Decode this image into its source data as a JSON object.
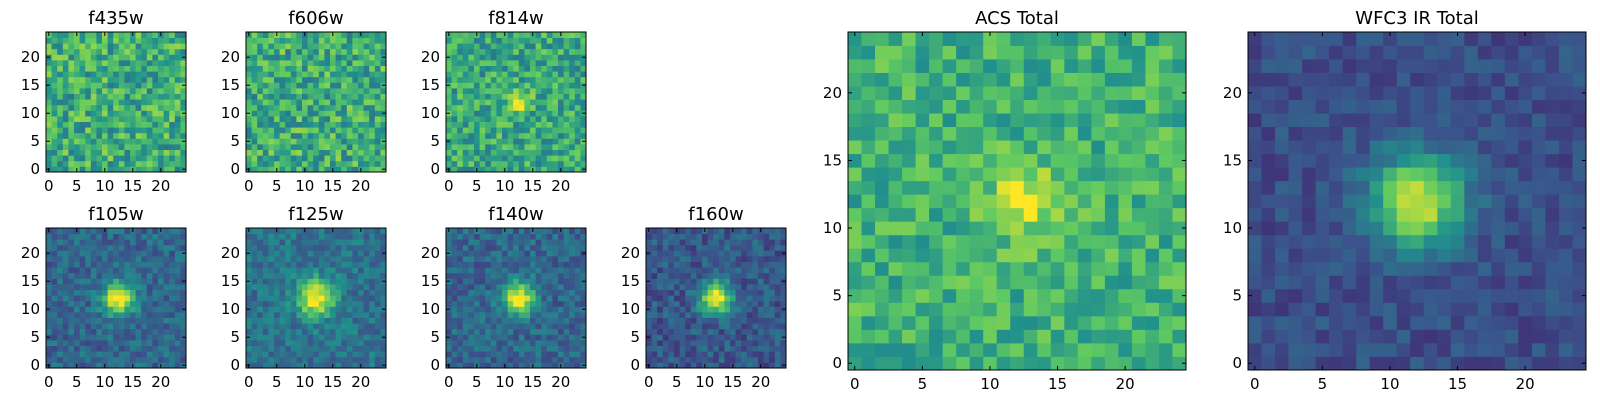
{
  "figure": {
    "colormap": [
      "#440154",
      "#3b528b",
      "#21918c",
      "#5ec962",
      "#fde725"
    ],
    "frame_color": "#000000"
  },
  "chart_data": [
    {
      "type": "heatmap",
      "title": "f435w",
      "grid_size": 25,
      "xlim": [
        0,
        24
      ],
      "ylim": [
        0,
        24
      ],
      "xticks": [
        "0",
        "5",
        "10",
        "15",
        "20"
      ],
      "yticks": [
        "0",
        "5",
        "10",
        "15",
        "20"
      ],
      "source": {
        "center": [
          12,
          12
        ],
        "peak": 0.0,
        "sigma": 2.0,
        "background": 0.62,
        "noise": 0.22,
        "seed": 11
      }
    },
    {
      "type": "heatmap",
      "title": "f606w",
      "grid_size": 25,
      "xlim": [
        0,
        24
      ],
      "ylim": [
        0,
        24
      ],
      "xticks": [
        "0",
        "5",
        "10",
        "15",
        "20"
      ],
      "yticks": [
        "0",
        "5",
        "10",
        "15",
        "20"
      ],
      "source": {
        "center": [
          12,
          12
        ],
        "peak": 0.0,
        "sigma": 2.0,
        "background": 0.62,
        "noise": 0.22,
        "seed": 23
      }
    },
    {
      "type": "heatmap",
      "title": "f814w",
      "grid_size": 25,
      "xlim": [
        0,
        24
      ],
      "ylim": [
        0,
        24
      ],
      "xticks": [
        "0",
        "5",
        "10",
        "15",
        "20"
      ],
      "yticks": [
        "0",
        "5",
        "10",
        "15",
        "20"
      ],
      "source": {
        "center": [
          12.5,
          12
        ],
        "peak": 0.45,
        "sigma": 1.3,
        "background": 0.6,
        "noise": 0.2,
        "seed": 37
      }
    },
    {
      "type": "heatmap",
      "title": "f105w",
      "grid_size": 25,
      "xlim": [
        0,
        24
      ],
      "ylim": [
        0,
        24
      ],
      "xticks": [
        "0",
        "5",
        "10",
        "15",
        "20"
      ],
      "yticks": [
        "0",
        "5",
        "10",
        "15",
        "20"
      ],
      "source": {
        "center": [
          12.5,
          12
        ],
        "peak": 0.7,
        "sigma": 2.0,
        "background": 0.33,
        "noise": 0.12,
        "seed": 41
      }
    },
    {
      "type": "heatmap",
      "title": "f125w",
      "grid_size": 25,
      "xlim": [
        0,
        24
      ],
      "ylim": [
        0,
        24
      ],
      "xticks": [
        "0",
        "5",
        "10",
        "15",
        "20"
      ],
      "yticks": [
        "0",
        "5",
        "10",
        "15",
        "20"
      ],
      "source": {
        "center": [
          12,
          12
        ],
        "peak": 0.65,
        "sigma": 2.3,
        "background": 0.38,
        "noise": 0.12,
        "seed": 53
      }
    },
    {
      "type": "heatmap",
      "title": "f140w",
      "grid_size": 25,
      "xlim": [
        0,
        24
      ],
      "ylim": [
        0,
        24
      ],
      "xticks": [
        "0",
        "5",
        "10",
        "15",
        "20"
      ],
      "yticks": [
        "0",
        "5",
        "10",
        "15",
        "20"
      ],
      "source": {
        "center": [
          12.5,
          12
        ],
        "peak": 0.68,
        "sigma": 2.0,
        "background": 0.33,
        "noise": 0.12,
        "seed": 67
      }
    },
    {
      "type": "heatmap",
      "title": "f160w",
      "grid_size": 25,
      "xlim": [
        0,
        24
      ],
      "ylim": [
        0,
        24
      ],
      "xticks": [
        "0",
        "5",
        "10",
        "15",
        "20"
      ],
      "yticks": [
        "0",
        "5",
        "10",
        "15",
        "20"
      ],
      "source": {
        "center": [
          12,
          12
        ],
        "peak": 0.72,
        "sigma": 2.0,
        "background": 0.28,
        "noise": 0.12,
        "seed": 79
      }
    },
    {
      "type": "heatmap",
      "title": "ACS Total",
      "grid_size": 25,
      "xlim": [
        0,
        24
      ],
      "ylim": [
        0,
        24
      ],
      "xticks": [
        "0",
        "5",
        "10",
        "15",
        "20"
      ],
      "yticks": [
        "0",
        "5",
        "10",
        "15",
        "20"
      ],
      "source": {
        "center": [
          12.5,
          12
        ],
        "peak": 0.35,
        "sigma": 1.8,
        "background": 0.64,
        "noise": 0.16,
        "seed": 97
      }
    },
    {
      "type": "heatmap",
      "title": "WFC3 IR Total",
      "grid_size": 25,
      "xlim": [
        0,
        24
      ],
      "ylim": [
        0,
        24
      ],
      "xticks": [
        "0",
        "5",
        "10",
        "15",
        "20"
      ],
      "yticks": [
        "0",
        "5",
        "10",
        "15",
        "20"
      ],
      "source": {
        "center": [
          12,
          12
        ],
        "peak": 0.7,
        "sigma": 2.4,
        "background": 0.24,
        "noise": 0.08,
        "seed": 113
      }
    }
  ]
}
